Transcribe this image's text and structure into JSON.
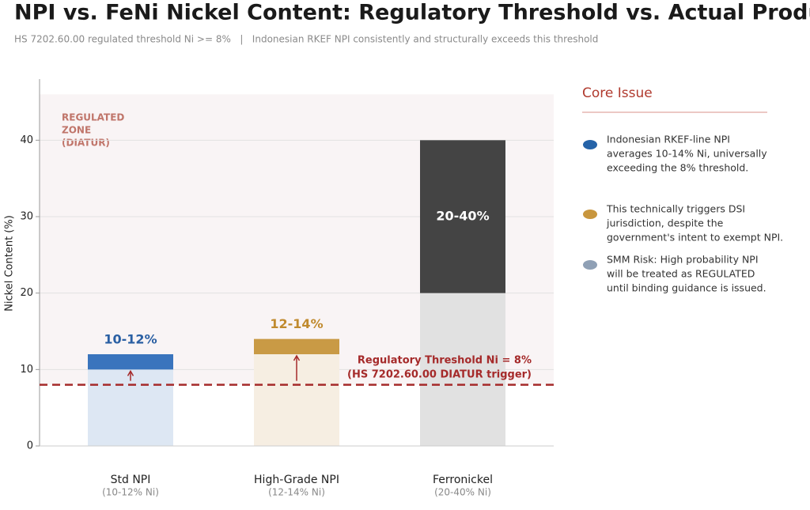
{
  "chart_data": {
    "type": "range_bar",
    "title": "NPI vs. FeNi Nickel Content: Regulatory Threshold vs. Actual Production Range",
    "subtitle": "HS 7202.60.00 regulated threshold Ni >= 8%   |   Indonesian RKEF NPI consistently and structurally exceeds this threshold",
    "y_label": "Nickel Content (%)",
    "categories": [
      "Std NPI",
      "High-Grade NPI",
      "Ferronickel"
    ],
    "category_notes": [
      "(10-12% Ni)",
      "(12-14% Ni)",
      "(20-40% Ni)"
    ],
    "low": [
      10,
      12,
      20
    ],
    "high": [
      12,
      14,
      40
    ],
    "range_labels": [
      "10-12%",
      "12-14%",
      "20-40%"
    ],
    "colors": [
      "#3a74bd",
      "#c99a45",
      "#444444"
    ],
    "base_colors": [
      "#dde7f3",
      "#f6eee2",
      "#e1e1e1"
    ],
    "label_colors": [
      "#2a5fa3",
      "#c08a2e",
      "#ffffff"
    ],
    "arrows": [
      true,
      true,
      false
    ],
    "threshold": 8,
    "threshold_label": [
      "Regulatory Threshold  Ni = 8%",
      "(HS 7202.60.00  DIATUR trigger)"
    ],
    "zone_range": [
      8,
      46
    ],
    "zone_label": [
      "REGULATED",
      "ZONE",
      "(DIATUR)"
    ],
    "ylim": [
      0,
      48
    ],
    "yticks": [
      0,
      10,
      20,
      30,
      40
    ],
    "grid": true
  },
  "panel": {
    "title": "Core Issue",
    "items": [
      {
        "color": "#2563a8",
        "lines": [
          "Indonesian RKEF-line NPI",
          "averages 10-14% Ni, universally",
          "exceeding the 8% threshold."
        ]
      },
      {
        "color": "#c8963e",
        "lines": [
          "This technically triggers DSI",
          "jurisdiction, despite the",
          "government's intent to exempt NPI."
        ]
      },
      {
        "color": "#8fa0b5",
        "lines": [
          "SMM Risk: High probability NPI",
          "will be treated as REGULATED",
          "until binding guidance is issued."
        ]
      }
    ]
  }
}
